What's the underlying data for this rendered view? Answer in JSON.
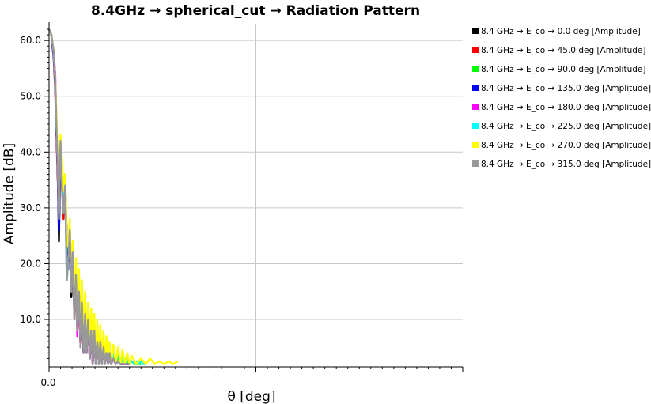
{
  "chart_data": {
    "type": "line",
    "title": "8.4GHz → spherical_cut → Radiation Pattern",
    "xlabel": "θ [deg]",
    "ylabel": "Amplitude [dB]",
    "xlim": [
      0,
      180
    ],
    "ylim": [
      1.5,
      63
    ],
    "yticks": [
      10,
      20,
      30,
      40,
      50,
      60
    ],
    "ytick_labels": [
      "10.0",
      "20.0",
      "30.0",
      "40.0",
      "50.0",
      "60.0"
    ],
    "xticks": [
      0
    ],
    "xtick_labels": [
      "0.0"
    ],
    "grid": true,
    "legend_position": "right",
    "series": [
      {
        "name": "8.4 GHz → E_co → 0.0 deg [Amplitude]",
        "color": "#000000",
        "x": [
          0,
          1,
          2,
          2.7,
          3.2,
          3.8,
          4.3,
          5,
          5.7,
          6.3,
          7,
          7.7,
          8.3,
          9,
          9.7,
          10.3,
          11,
          11.7,
          12.3,
          13,
          13.7,
          14.3,
          15,
          15.7,
          16.3,
          17,
          17.7,
          18.3,
          19,
          19.7,
          20.3,
          21,
          21.7,
          22.3,
          23,
          23.7,
          24.3,
          25,
          25.7,
          26.3,
          27,
          28,
          29,
          30,
          31,
          32,
          33,
          34,
          35
        ],
        "y": [
          62,
          61,
          58,
          52,
          44,
          36,
          24,
          40,
          35,
          30,
          35,
          25,
          19,
          26,
          14,
          21,
          11,
          18,
          9,
          15,
          6,
          13,
          4,
          11,
          5,
          10,
          3,
          8,
          2,
          8,
          2,
          6,
          2,
          6,
          2,
          5,
          2,
          4,
          2,
          4,
          2,
          3,
          2,
          2.5,
          2,
          2,
          2,
          2,
          2
        ]
      },
      {
        "name": "8.4 GHz → E_co → 45.0 deg [Amplitude]",
        "color": "#ff0000",
        "x": [
          0,
          1,
          2,
          2.7,
          3.2,
          3.8,
          4.3,
          5,
          5.7,
          6.3,
          7,
          7.7,
          8.3,
          9,
          9.7,
          10.3,
          11,
          11.7,
          12.3,
          13,
          13.7,
          14.3,
          15,
          15.7,
          16.3,
          17,
          17.7,
          18.3,
          19,
          19.7,
          20.3,
          21,
          21.7,
          22.3,
          23,
          23.7,
          24.3,
          25,
          25.7,
          26.3,
          27,
          28,
          29,
          30,
          31,
          32,
          33,
          34,
          35
        ],
        "y": [
          62,
          61,
          57,
          51,
          43,
          35,
          27,
          41,
          33,
          28,
          33,
          22,
          20,
          25,
          15,
          21,
          10,
          17,
          8,
          14,
          5,
          12,
          4,
          10,
          4,
          9,
          3,
          8,
          2,
          7,
          2,
          6,
          2,
          6,
          2,
          5,
          2,
          4,
          2,
          4,
          2,
          3,
          2,
          2.5,
          2,
          2,
          2,
          2,
          2
        ]
      },
      {
        "name": "8.4 GHz → E_co → 90.0 deg [Amplitude]",
        "color": "#00ff00",
        "x": [
          0,
          1,
          2,
          2.7,
          3.2,
          3.8,
          4.3,
          5,
          5.7,
          6.3,
          7,
          7.7,
          8.3,
          9,
          9.7,
          10.3,
          11,
          11.7,
          12.3,
          13,
          13.7,
          14.3,
          15,
          15.7,
          16.3,
          17,
          17.7,
          18.3,
          19,
          19.7,
          20.3,
          21,
          21.7,
          22.3,
          23,
          23.7,
          24.3,
          25,
          25.7,
          26.3,
          27,
          28,
          29,
          30,
          31,
          32,
          33,
          34,
          35,
          36,
          37,
          38,
          39,
          40
        ],
        "y": [
          62,
          61,
          58,
          52,
          45,
          38,
          30,
          42,
          36,
          31,
          36,
          22,
          21,
          27,
          16,
          23,
          12,
          19,
          10,
          17,
          7,
          15,
          6,
          13,
          6,
          12,
          4,
          11,
          3,
          10,
          3,
          9,
          2,
          8,
          2,
          7,
          2,
          6,
          2,
          5,
          2,
          4,
          2,
          3.5,
          2,
          3,
          2,
          2.5,
          2,
          2.5,
          2,
          2,
          2,
          2
        ]
      },
      {
        "name": "8.4 GHz → E_co → 135.0 deg [Amplitude]",
        "color": "#0000ff",
        "x": [
          0,
          1,
          2,
          2.7,
          3.2,
          3.8,
          4.3,
          5,
          5.7,
          6.3,
          7,
          7.7,
          8.3,
          9,
          9.7,
          10.3,
          11,
          11.7,
          12.3,
          13,
          13.7,
          14.3,
          15,
          15.7,
          16.3,
          17,
          17.7,
          18.3,
          19,
          19.7,
          20.3,
          21,
          21.7,
          22.3,
          23,
          23.7,
          24.3,
          25,
          25.7,
          26.3,
          27,
          28,
          29,
          30,
          31,
          32,
          33,
          34,
          35
        ],
        "y": [
          62,
          61,
          57,
          52,
          44,
          36,
          26,
          40,
          34,
          29,
          34,
          21,
          19,
          25,
          15,
          22,
          11,
          17,
          9,
          15,
          6,
          13,
          4,
          11,
          4,
          10,
          3,
          8,
          2,
          8,
          2,
          7,
          2,
          6,
          2,
          5,
          2,
          4,
          2,
          4,
          2,
          3,
          2,
          2.5,
          2,
          2,
          2,
          2,
          2
        ]
      },
      {
        "name": "8.4 GHz → E_co → 180.0 deg [Amplitude]",
        "color": "#ff00ff",
        "x": [
          0,
          1,
          2,
          2.7,
          3.2,
          3.8,
          4.3,
          5,
          5.7,
          6.3,
          7,
          7.7,
          8.3,
          9,
          9.7,
          10.3,
          11,
          11.7,
          12.3,
          13,
          13.7,
          14.3,
          15,
          15.7,
          16.3,
          17,
          17.7,
          18.3,
          19,
          19.7,
          20.3,
          21,
          21.7,
          22.3,
          23,
          23.7,
          24.3,
          25,
          25.7,
          26.3,
          27,
          28,
          29,
          30,
          31,
          32,
          33,
          34,
          35
        ],
        "y": [
          62,
          61,
          58,
          54,
          46,
          37,
          36,
          41,
          37,
          32,
          35,
          24,
          24,
          26,
          18,
          22,
          13,
          18,
          7,
          15,
          5,
          12,
          6,
          10,
          4,
          9,
          3,
          8,
          2,
          7,
          2,
          6,
          2,
          5,
          2,
          5,
          2,
          4,
          2,
          3.5,
          2,
          3,
          2,
          2.5,
          2,
          2,
          2,
          2,
          2
        ]
      },
      {
        "name": "8.4 GHz → E_co → 225.0 deg [Amplitude]",
        "color": "#00ffff",
        "x": [
          0,
          1,
          2,
          2.7,
          3.2,
          3.8,
          4.3,
          5,
          5.7,
          6.3,
          7,
          7.7,
          8.3,
          9,
          9.7,
          10.3,
          11,
          11.7,
          12.3,
          13,
          13.7,
          14.3,
          15,
          15.7,
          16.3,
          17,
          17.7,
          18.3,
          19,
          19.7,
          20.3,
          21,
          21.7,
          22.3,
          23,
          23.7,
          24.3,
          25,
          25.7,
          26.3,
          27,
          28,
          29,
          30,
          31,
          32,
          33,
          34,
          35,
          36,
          37,
          38,
          39,
          40,
          41,
          42
        ],
        "y": [
          62,
          61,
          58,
          53,
          45,
          38,
          29,
          42,
          35,
          30,
          35,
          17,
          20,
          26,
          15,
          23,
          11,
          19,
          9,
          16,
          6,
          14,
          5,
          12,
          5,
          11,
          4,
          10,
          3,
          9,
          2,
          8,
          2,
          7,
          2,
          6,
          2,
          5,
          2,
          5,
          2,
          4,
          2,
          4,
          2,
          3.5,
          2,
          3,
          2,
          2.5,
          2,
          2.5,
          2,
          2.5,
          2,
          2
        ]
      },
      {
        "name": "8.4 GHz → E_co → 270.0 deg [Amplitude]",
        "color": "#ffff00",
        "x": [
          0,
          1,
          2,
          2.7,
          3.2,
          3.8,
          4.3,
          5,
          5.7,
          6.3,
          7,
          7.7,
          8.3,
          9,
          9.7,
          10.3,
          11,
          11.7,
          12.3,
          13,
          13.7,
          14.3,
          15,
          15.7,
          16.3,
          17,
          17.7,
          18.3,
          19,
          19.7,
          20.3,
          21,
          21.7,
          22.3,
          23,
          23.7,
          24.3,
          25,
          25.7,
          26.3,
          27,
          28,
          29,
          30,
          31,
          32,
          33,
          34,
          35,
          36,
          38,
          40,
          42,
          44,
          46,
          48,
          50,
          52,
          54,
          56
        ],
        "y": [
          62,
          61,
          58,
          53,
          47,
          39,
          30,
          43,
          38,
          33,
          36,
          24,
          23,
          28,
          17,
          24,
          13,
          21,
          11,
          19,
          8,
          17,
          7,
          15,
          6,
          13,
          5,
          12,
          4,
          11,
          3,
          10,
          3,
          9,
          2,
          8,
          2,
          7,
          2,
          6,
          2,
          5.5,
          2,
          5,
          2,
          4.5,
          2,
          4,
          2,
          3.5,
          2,
          3,
          2,
          3,
          2,
          2.5,
          2,
          2.5,
          2,
          2.5
        ]
      },
      {
        "name": "8.4 GHz → E_co → 315.0 deg [Amplitude]",
        "color": "#999999",
        "x": [
          0,
          1,
          2,
          2.7,
          3.2,
          3.8,
          4.3,
          5,
          5.7,
          6.3,
          7,
          7.7,
          8.3,
          9,
          9.7,
          10.3,
          11,
          11.7,
          12.3,
          13,
          13.7,
          14.3,
          15,
          15.7,
          16.3,
          17,
          17.7,
          18.3,
          19,
          19.7,
          20.3,
          21,
          21.7,
          22.3,
          23,
          23.7,
          24.3,
          25,
          25.7,
          26.3,
          27,
          28,
          29,
          30,
          31,
          32,
          33,
          34,
          35
        ],
        "y": [
          62,
          61,
          58,
          53,
          45,
          37,
          28,
          42,
          33,
          29,
          34,
          17,
          20,
          26,
          15,
          22,
          10,
          18,
          8,
          15,
          5,
          13,
          4,
          11,
          4,
          10,
          3,
          8,
          2,
          8,
          2,
          6,
          2,
          6,
          2,
          5,
          2,
          4,
          2,
          4,
          2,
          3,
          2,
          2.5,
          2,
          2,
          2,
          2,
          2
        ]
      }
    ]
  }
}
